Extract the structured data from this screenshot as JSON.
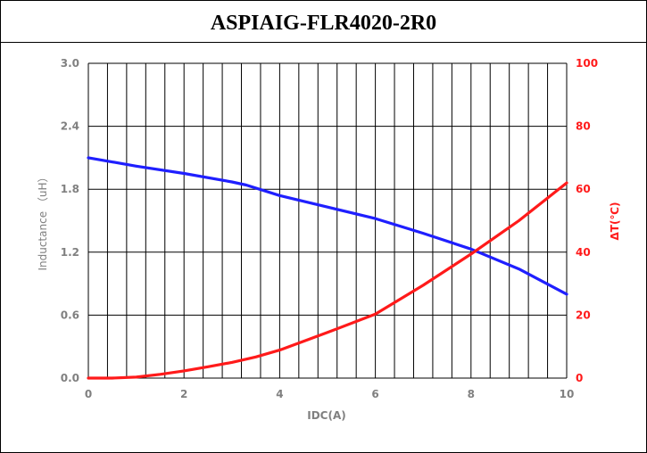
{
  "chart_data": {
    "type": "line",
    "title": "ASPIAIG-FLR4020-2R0",
    "xlabel": "IDC(A)",
    "ylabel": "Inductance （uH）",
    "y2label": "ΔT(℃)",
    "xlim": [
      0,
      10
    ],
    "ylim": [
      0,
      3.0
    ],
    "y2lim": [
      0,
      100
    ],
    "xticks": [
      "0",
      "2",
      "4",
      "6",
      "8",
      "10"
    ],
    "yticks": [
      "0.0",
      "0.6",
      "1.2",
      "1.8",
      "2.4",
      "3.0"
    ],
    "y2ticks": [
      "0",
      "20",
      "40",
      "60",
      "80",
      "100"
    ],
    "grid": true,
    "series": [
      {
        "axis": "left",
        "color": "#1f1fff",
        "x": [
          0,
          1,
          2,
          3,
          3.3,
          4,
          5,
          6,
          7,
          8,
          9,
          10
        ],
        "y": [
          2.1,
          2.02,
          1.95,
          1.87,
          1.84,
          1.74,
          1.63,
          1.52,
          1.38,
          1.23,
          1.04,
          0.8
        ]
      },
      {
        "axis": "right",
        "color": "#ff1a1a",
        "x": [
          0,
          0.5,
          1,
          1.5,
          2,
          2.5,
          3,
          3.5,
          4,
          5,
          6,
          7,
          8,
          9,
          10
        ],
        "y": [
          0,
          0,
          0.3,
          1.2,
          2.3,
          3.6,
          5,
          6.7,
          8.9,
          14.5,
          20.3,
          29.5,
          39.4,
          50,
          62
        ]
      }
    ],
    "colors": {
      "left_axis": "#808080",
      "right_axis": "#ff1a1a",
      "grid": "#000000"
    }
  }
}
